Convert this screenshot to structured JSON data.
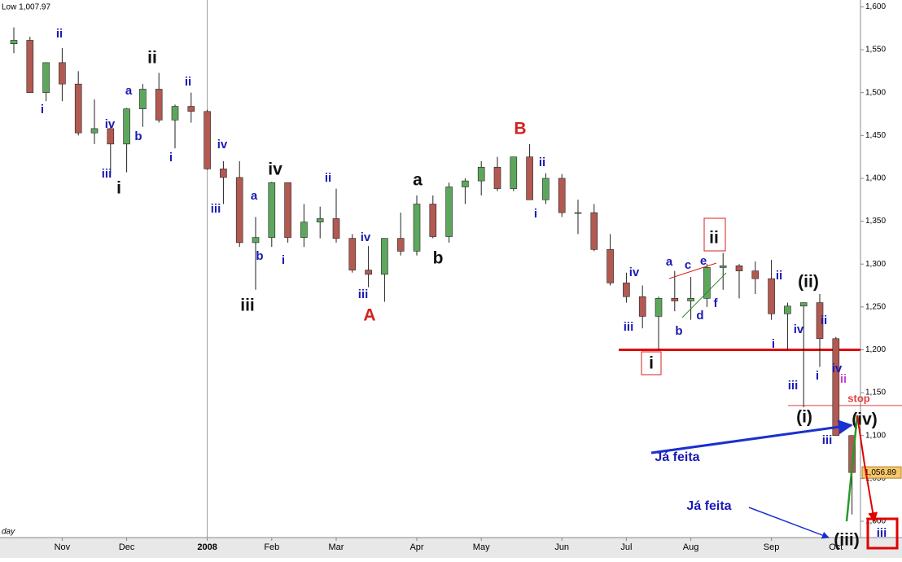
{
  "chart_data": {
    "type": "candlestick",
    "header": "Low 1,007.97",
    "period_label": "day",
    "categories": [
      null,
      null,
      null,
      "Nov",
      null,
      null,
      null,
      "Dec",
      null,
      null,
      null,
      null,
      "2008",
      null,
      null,
      null,
      "Feb",
      null,
      null,
      null,
      "Mar",
      null,
      null,
      null,
      null,
      "Apr",
      null,
      null,
      null,
      "May",
      null,
      null,
      null,
      null,
      "Jun",
      null,
      null,
      null,
      "Jul",
      null,
      null,
      null,
      "Aug",
      null,
      null,
      null,
      null,
      "Sep",
      null,
      null,
      null,
      "Oct",
      null
    ],
    "open": [
      1557,
      1561,
      1500,
      1535,
      1510,
      1453,
      1458,
      1440,
      1481,
      1504,
      1468,
      1484,
      1478,
      1411,
      1401,
      1325,
      1331,
      1395,
      1331,
      1349,
      1353,
      1330,
      1293,
      1288,
      1330,
      1315,
      1370,
      1332,
      1390,
      1397,
      1413,
      1388,
      1425,
      1375,
      1400,
      1360,
      1360,
      1317,
      1278,
      1262,
      1239,
      1260,
      1257,
      1260,
      1296,
      1298,
      1292,
      1283,
      1242,
      1251,
      1255,
      1213,
      1100
    ],
    "high": [
      1576,
      1565,
      1530,
      1552,
      1525,
      1492,
      1460,
      1482,
      1510,
      1523,
      1486,
      1500,
      1480,
      1420,
      1420,
      1355,
      1396,
      1395,
      1370,
      1367,
      1388,
      1335,
      1321,
      1330,
      1360,
      1380,
      1380,
      1395,
      1400,
      1420,
      1425,
      1425,
      1440,
      1406,
      1405,
      1375,
      1370,
      1335,
      1290,
      1275,
      1262,
      1292,
      1285,
      1300,
      1313,
      1300,
      1303,
      1305,
      1255,
      1255,
      1265,
      1215,
      1100
    ],
    "low": [
      1546,
      1500,
      1490,
      1490,
      1450,
      1440,
      1406,
      1407,
      1460,
      1465,
      1435,
      1465,
      1410,
      1370,
      1320,
      1270,
      1320,
      1325,
      1320,
      1330,
      1325,
      1290,
      1273,
      1256,
      1310,
      1310,
      1330,
      1325,
      1370,
      1380,
      1385,
      1385,
      1375,
      1370,
      1355,
      1335,
      1315,
      1275,
      1255,
      1225,
      1200,
      1245,
      1235,
      1250,
      1270,
      1260,
      1265,
      1235,
      1200,
      1133,
      1180,
      1100,
      1007.97
    ],
    "close": [
      1561,
      1500,
      1535,
      1510,
      1453,
      1458,
      1440,
      1481,
      1504,
      1468,
      1484,
      1478,
      1411,
      1401,
      1325,
      1331,
      1395,
      1331,
      1349,
      1353,
      1330,
      1293,
      1288,
      1330,
      1315,
      1370,
      1332,
      1390,
      1397,
      1413,
      1388,
      1425,
      1375,
      1400,
      1360,
      1360,
      1317,
      1278,
      1262,
      1239,
      1260,
      1257,
      1260,
      1296,
      1298,
      1292,
      1283,
      1242,
      1251,
      1255,
      1213,
      1100,
      1056.89
    ],
    "up_color": "#5da75d",
    "down_color": "#b25a52",
    "ylim": [
      981,
      1608
    ],
    "yticks": [
      {
        "value": 1000,
        "label": "1,000"
      },
      {
        "value": 1050,
        "label": "1,050"
      },
      {
        "value": 1100,
        "label": "1,100"
      },
      {
        "value": 1150,
        "label": "1,150"
      },
      {
        "value": 1200,
        "label": "1,200"
      },
      {
        "value": 1250,
        "label": "1,250"
      },
      {
        "value": 1300,
        "label": "1,300"
      },
      {
        "value": 1350,
        "label": "1,350"
      },
      {
        "value": 1400,
        "label": "1,400"
      },
      {
        "value": 1450,
        "label": "1,450"
      },
      {
        "value": 1500,
        "label": "1,500"
      },
      {
        "value": 1550,
        "label": "1,550"
      },
      {
        "value": 1600,
        "label": "1,600"
      }
    ],
    "last_price": {
      "value": 1056.89,
      "label": "1,056.89"
    },
    "levels": [
      {
        "value": 1200,
        "color": "#e00000"
      },
      {
        "value": 1135,
        "color": "#e04040",
        "label": "stop"
      }
    ],
    "annotations": [
      {
        "text": "ii",
        "color": "#1a1ab4"
      },
      {
        "text": "i",
        "color": "#1a1ab4"
      },
      {
        "text": "ii",
        "color": "#111"
      },
      {
        "text": "a",
        "color": "#1a1ab4"
      },
      {
        "text": "b",
        "color": "#1a1ab4"
      },
      {
        "text": "iv",
        "color": "#1a1ab4"
      },
      {
        "text": "iii",
        "color": "#1a1ab4"
      },
      {
        "text": "i",
        "color": "#111"
      },
      {
        "text": "i",
        "color": "#1a1ab4"
      },
      {
        "text": "ii",
        "color": "#1a1ab4"
      },
      {
        "text": "iv",
        "color": "#1a1ab4"
      },
      {
        "text": "iii",
        "color": "#1a1ab4"
      },
      {
        "text": "iii",
        "color": "#111"
      },
      {
        "text": "a",
        "color": "#1a1ab4"
      },
      {
        "text": "b",
        "color": "#1a1ab4"
      },
      {
        "text": "iv",
        "color": "#111"
      },
      {
        "text": "ii",
        "color": "#1a1ab4"
      },
      {
        "text": "i",
        "color": "#1a1ab4"
      },
      {
        "text": "iv",
        "color": "#1a1ab4"
      },
      {
        "text": "iii",
        "color": "#1a1ab4"
      },
      {
        "text": "A",
        "color": "#d42020"
      },
      {
        "text": "a",
        "color": "#111"
      },
      {
        "text": "b",
        "color": "#111"
      },
      {
        "text": "B",
        "color": "#d42020"
      },
      {
        "text": "ii",
        "color": "#1a1ab4"
      },
      {
        "text": "i",
        "color": "#1a1ab4"
      },
      {
        "text": "iv",
        "color": "#1a1ab4"
      },
      {
        "text": "iii",
        "color": "#1a1ab4"
      },
      {
        "text": "a",
        "color": "#1a1ab4"
      },
      {
        "text": "c",
        "color": "#1a1ab4"
      },
      {
        "text": "e",
        "color": "#1a1ab4"
      },
      {
        "text": "b",
        "color": "#1a1ab4"
      },
      {
        "text": "d",
        "color": "#1a1ab4"
      },
      {
        "text": "f",
        "color": "#1a1ab4"
      },
      {
        "text": "ii",
        "color": "#111"
      },
      {
        "text": "i",
        "color": "#111"
      },
      {
        "text": "ii",
        "color": "#1a1ab4"
      },
      {
        "text": "(ii)",
        "color": "#111"
      },
      {
        "text": "iv",
        "color": "#1a1ab4"
      },
      {
        "text": "i",
        "color": "#1a1ab4"
      },
      {
        "text": "iii",
        "color": "#1a1ab4"
      },
      {
        "text": "i",
        "color": "#1a1ab4"
      },
      {
        "text": "ii",
        "color": "#1a1ab4"
      },
      {
        "text": "iv",
        "color": "#1a1ab4"
      },
      {
        "text": "ii",
        "color": "#cc44cc"
      },
      {
        "text": "(i)",
        "color": "#111"
      },
      {
        "text": "iii",
        "color": "#1a1ab4"
      },
      {
        "text": "(iv)",
        "color": "#111"
      },
      {
        "text": "Já feita",
        "color": "#1a1ab4"
      },
      {
        "text": "Já feita",
        "color": "#1a1ab4"
      },
      {
        "text": "(iii)",
        "color": "#111"
      },
      {
        "text": "iii",
        "color": "#1a1ab4"
      }
    ]
  }
}
